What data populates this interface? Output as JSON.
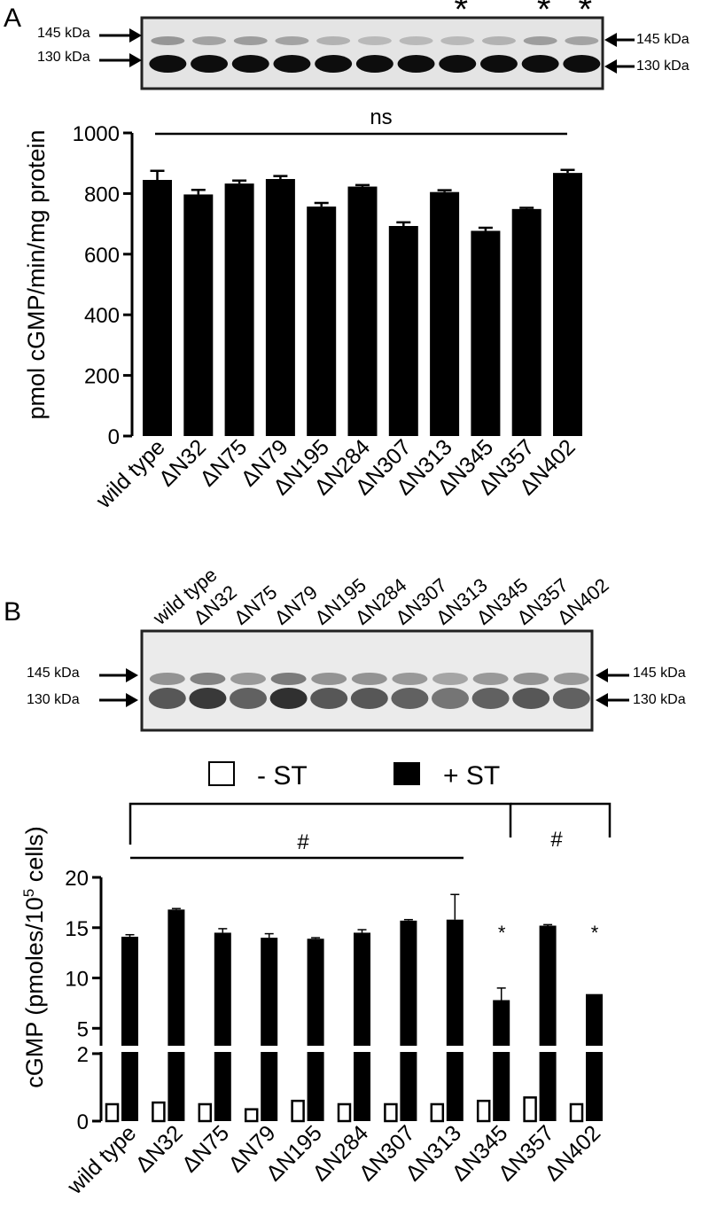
{
  "panel_a": {
    "letter": "A",
    "blot": {
      "left_markers": [
        "145 kDa",
        "130 kDa"
      ],
      "right_markers": [
        "145 kDa",
        "130 kDa"
      ],
      "asterisk_lanes": [
        8,
        10,
        11
      ],
      "asterisk_label": "*"
    },
    "significance_label": "ns"
  },
  "panel_b": {
    "letter": "B",
    "blot": {
      "lane_labels": [
        "wild type",
        "ΔN32",
        "ΔN75",
        "ΔN79",
        "ΔN195",
        "ΔN284",
        "ΔN307",
        "ΔN313",
        "ΔN345",
        "ΔN357",
        "ΔN402"
      ],
      "left_markers": [
        "145 kDa",
        "130 kDa"
      ],
      "right_markers": [
        "145 kDa",
        "130 kDa"
      ]
    },
    "legend": {
      "minus": "- ST",
      "plus": "+ ST"
    },
    "hash_label": "#",
    "star_label": "*"
  },
  "chart_data": [
    {
      "type": "bar",
      "categories": [
        "wild type",
        "ΔN32",
        "ΔN75",
        "ΔN79",
        "ΔN195",
        "ΔN284",
        "ΔN307",
        "ΔN313",
        "ΔN345",
        "ΔN357",
        "ΔN402"
      ],
      "values": [
        845,
        797,
        833,
        848,
        757,
        823,
        693,
        805,
        677,
        749,
        868
      ],
      "errors": [
        30,
        15,
        10,
        10,
        12,
        5,
        12,
        6,
        10,
        4,
        10
      ],
      "ylabel": "pmol cGMP/min/mg protein",
      "ylim": [
        0,
        1000
      ],
      "yticks": [
        "0",
        "200",
        "400",
        "600",
        "800",
        "1000"
      ],
      "annotation": "ns"
    },
    {
      "type": "bar",
      "categories": [
        "wild type",
        "ΔN32",
        "ΔN75",
        "ΔN79",
        "ΔN195",
        "ΔN284",
        "ΔN307",
        "ΔN313",
        "ΔN345",
        "ΔN357",
        "ΔN402"
      ],
      "series": [
        {
          "name": "- ST",
          "values": [
            0.5,
            0.55,
            0.5,
            0.35,
            0.6,
            0.5,
            0.5,
            0.5,
            0.6,
            0.7,
            0.5
          ]
        },
        {
          "name": "+ ST",
          "values": [
            14.1,
            16.8,
            14.5,
            14.0,
            13.9,
            14.5,
            15.7,
            15.8,
            7.8,
            15.2,
            8.4
          ],
          "errors": [
            0.2,
            0.1,
            0.4,
            0.4,
            0.1,
            0.3,
            0.1,
            2.5,
            1.2,
            0.1,
            0
          ]
        }
      ],
      "ylabel": "cGMP (pmoles/10⁵ cells)",
      "ylabel_main": "cGMP (pmoles/10",
      "ylabel_sup": "5",
      "ylabel_tail": " cells)",
      "yticks_lower": [
        "0",
        "2"
      ],
      "yticks_upper": [
        "5",
        "10",
        "15",
        "20"
      ],
      "axis_break": true,
      "significant_lanes": [
        8,
        10
      ],
      "hash_groups": [
        [
          0,
          7
        ],
        [
          8,
          10
        ]
      ]
    }
  ]
}
